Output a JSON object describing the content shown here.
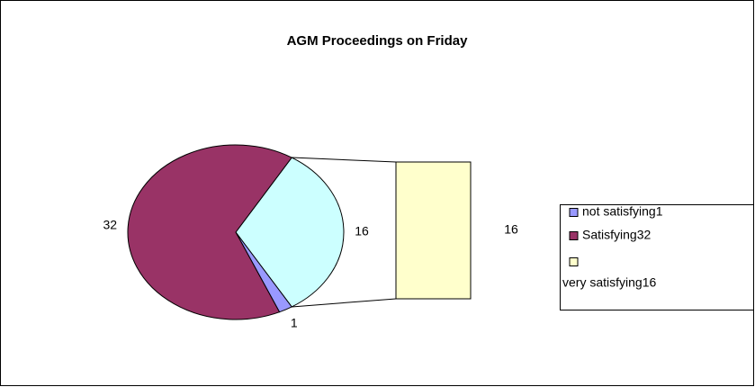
{
  "chart_data": {
    "type": "bar-of-pie",
    "title": "AGM Proceedings on Friday",
    "categories": [
      "not satisfying1",
      "Satisfying32",
      "very satisfying16"
    ],
    "values": [
      1,
      32,
      16
    ],
    "colors": [
      "#9999ff",
      "#993366",
      "#ffffcc"
    ],
    "other_color": "#ccffff"
  }
}
